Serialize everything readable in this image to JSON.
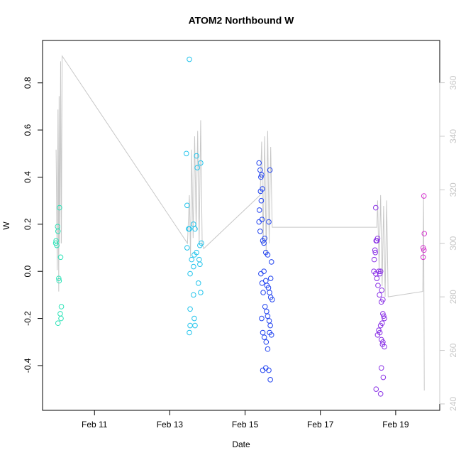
{
  "chart_data": {
    "type": "scatter",
    "title": "ATOM2 Northbound W",
    "xlabel": "Date",
    "ylabel": "W",
    "xlim": [
      9.62,
      20.17
    ],
    "xticks": [
      {
        "value": 11,
        "label": "Feb 11"
      },
      {
        "value": 13,
        "label": "Feb 13"
      },
      {
        "value": 15,
        "label": "Feb 15"
      },
      {
        "value": 17,
        "label": "Feb 17"
      },
      {
        "value": 19,
        "label": "Feb 19"
      }
    ],
    "ylim": [
      -0.59,
      0.98
    ],
    "yticks": [
      -0.4,
      -0.2,
      {
        "value": 0,
        "label": "0.0"
      },
      0.2,
      0.4,
      0.6,
      0.8
    ],
    "y2lim": [
      237.6,
      375.8
    ],
    "y2ticks": [
      240,
      260,
      280,
      300,
      320,
      340,
      360
    ],
    "series": [
      {
        "color": "#2fe3b8",
        "x": [
          9.98,
          10.0,
          10.02,
          10.03,
          10.07,
          10.1,
          10.05,
          10.06,
          10.12,
          10.09,
          10.11,
          10.03,
          9.97
        ],
        "values": [
          0.13,
          0.11,
          0.19,
          0.17,
          0.27,
          0.06,
          -0.03,
          -0.04,
          -0.15,
          -0.18,
          -0.2,
          -0.22,
          0.12
        ]
      },
      {
        "color": "#22c4ec",
        "x": [
          13.52,
          13.44,
          13.46,
          13.46,
          13.5,
          13.52,
          13.54,
          13.58,
          13.63,
          13.67,
          13.65,
          13.71,
          13.63,
          13.71,
          13.73,
          13.82,
          13.84,
          13.8,
          13.78,
          13.8,
          13.82,
          13.63,
          13.76,
          13.54,
          13.65,
          13.54,
          13.67,
          13.52
        ],
        "values": [
          0.9,
          0.5,
          0.28,
          0.1,
          0.18,
          0.18,
          -0.01,
          0.05,
          0.2,
          0.18,
          0.07,
          0.08,
          0.02,
          0.49,
          0.44,
          0.46,
          0.12,
          0.11,
          0.05,
          0.03,
          -0.09,
          -0.1,
          -0.05,
          -0.16,
          -0.2,
          -0.23,
          -0.23,
          -0.26
        ]
      },
      {
        "color": "#2244f0",
        "x": [
          15.37,
          15.4,
          15.42,
          15.44,
          15.46,
          15.41,
          15.38,
          15.43,
          15.45,
          15.37,
          15.4,
          15.47,
          15.5,
          15.52,
          15.55,
          15.6,
          15.63,
          15.66,
          15.7,
          15.68,
          15.42,
          15.45,
          15.5,
          15.55,
          15.58,
          15.62,
          15.65,
          15.68,
          15.72,
          15.48,
          15.53,
          15.57,
          15.6,
          15.64,
          15.67,
          15.44,
          15.47,
          15.51,
          15.56,
          15.6,
          15.65,
          15.7,
          15.47,
          15.55,
          15.63,
          15.67
        ],
        "values": [
          0.46,
          0.43,
          0.4,
          0.41,
          0.35,
          0.34,
          0.26,
          0.3,
          0.22,
          0.21,
          0.17,
          0.13,
          0.12,
          0.14,
          0.08,
          0.07,
          0.21,
          0.43,
          0.04,
          -0.03,
          -0.01,
          -0.05,
          0.0,
          -0.04,
          -0.06,
          -0.07,
          -0.09,
          -0.11,
          -0.12,
          -0.09,
          -0.15,
          -0.17,
          -0.19,
          -0.21,
          -0.23,
          -0.2,
          -0.26,
          -0.28,
          -0.3,
          -0.33,
          -0.26,
          -0.27,
          -0.42,
          -0.41,
          -0.42,
          -0.46
        ]
      },
      {
        "color": "#8a32e6",
        "x": [
          18.47,
          18.45,
          18.5,
          18.43,
          18.46,
          18.48,
          18.52,
          18.55,
          18.58,
          18.6,
          18.42,
          18.47,
          18.5,
          18.53,
          18.57,
          18.62,
          18.66,
          18.7,
          18.68,
          18.64,
          18.6,
          18.55,
          18.52,
          18.58,
          18.62,
          18.66,
          18.7,
          18.65,
          18.62,
          18.67,
          18.48,
          18.6,
          18.66,
          18.63
        ],
        "values": [
          0.27,
          0.09,
          0.13,
          0.05,
          0.08,
          0.13,
          0.14,
          0.0,
          -0.01,
          0.0,
          0.0,
          -0.01,
          -0.03,
          -0.06,
          -0.1,
          -0.13,
          -0.18,
          -0.2,
          -0.19,
          -0.22,
          -0.23,
          -0.25,
          -0.27,
          -0.26,
          -0.29,
          -0.3,
          -0.32,
          -0.31,
          -0.41,
          -0.45,
          -0.5,
          -0.52,
          -0.12,
          -0.08
        ]
      },
      {
        "color": "#d633d0",
        "x": [
          19.75,
          19.76,
          19.73,
          19.75,
          19.73
        ],
        "values": [
          0.32,
          0.16,
          0.1,
          0.09,
          0.06
        ]
      }
    ],
    "line": {
      "axis": "y2",
      "color": "#c8c8c8",
      "x": [
        9.98,
        10.01,
        10.03,
        10.05,
        10.06,
        10.08,
        10.1,
        10.12,
        10.14,
        13.47,
        13.52,
        13.55,
        13.58,
        13.62,
        13.66,
        13.7,
        13.74,
        13.78,
        13.82,
        13.86,
        13.9,
        15.4,
        15.44,
        15.48,
        15.52,
        15.56,
        15.6,
        15.64,
        15.68,
        15.72,
        18.5,
        18.52,
        18.56,
        18.6,
        18.64,
        18.68,
        18.72,
        18.76,
        18.8,
        19.72,
        19.74,
        19.76
      ],
      "values": [
        335,
        290,
        350,
        282,
        355,
        300,
        368,
        300,
        370,
        300,
        318,
        295,
        335,
        302,
        340,
        305,
        342,
        300,
        346,
        300,
        298,
        318,
        338,
        300,
        340,
        296,
        342,
        300,
        336,
        306,
        306,
        316,
        290,
        318,
        284,
        314,
        280,
        316,
        280,
        282,
        318,
        245
      ]
    }
  }
}
